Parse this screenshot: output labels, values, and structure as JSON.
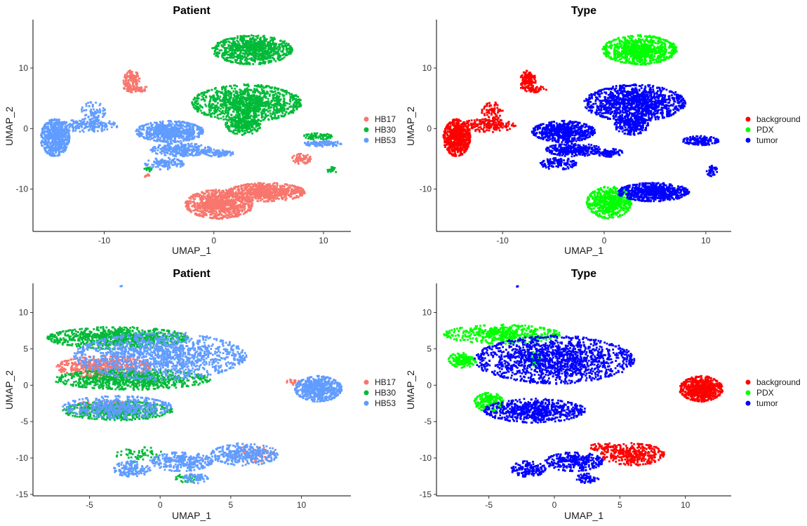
{
  "chart_data": [
    {
      "type": "scatter",
      "title": "Patient",
      "xlabel": "UMAP_1",
      "ylabel": "UMAP_2",
      "xlim": [
        -16.5,
        12.5
      ],
      "ylim": [
        -17,
        18
      ],
      "xticks": [
        -10,
        0,
        10
      ],
      "yticks": [
        -10,
        0,
        10
      ],
      "grid": false,
      "legend_position": "right",
      "series": [
        {
          "name": "HB17",
          "color": "#F8766D",
          "clusters": [
            {
              "cx": -7.5,
              "cy": 8,
              "rx": 0.7,
              "ry": 1.5,
              "n": 120
            },
            {
              "cx": -7,
              "cy": 6.5,
              "rx": 1.2,
              "ry": 0.5,
              "n": 60
            },
            {
              "cx": 0.5,
              "cy": -12.5,
              "rx": 2.8,
              "ry": 2.2,
              "n": 900
            },
            {
              "cx": 4.8,
              "cy": -10.5,
              "rx": 3.2,
              "ry": 1.4,
              "n": 700
            },
            {
              "cx": 8,
              "cy": -5,
              "rx": 0.8,
              "ry": 0.8,
              "n": 60
            },
            {
              "cx": -6,
              "cy": -7.8,
              "rx": 0.3,
              "ry": 0.3,
              "n": 10
            }
          ]
        },
        {
          "name": "HB30",
          "color": "#00BA38",
          "clusters": [
            {
              "cx": 3.5,
              "cy": 13,
              "rx": 3.3,
              "ry": 2.2,
              "n": 850
            },
            {
              "cx": 3,
              "cy": 4.2,
              "rx": 4.5,
              "ry": 2.8,
              "n": 1200
            },
            {
              "cx": 2.7,
              "cy": 0.6,
              "rx": 1.5,
              "ry": 1.5,
              "n": 250
            },
            {
              "cx": 9.5,
              "cy": -1.3,
              "rx": 1.2,
              "ry": 0.5,
              "n": 70
            },
            {
              "cx": 10.8,
              "cy": -6.8,
              "rx": 0.4,
              "ry": 0.6,
              "n": 20
            },
            {
              "cx": -6,
              "cy": -6.7,
              "rx": 0.3,
              "ry": 0.4,
              "n": 15
            }
          ]
        },
        {
          "name": "HB53",
          "color": "#619CFF",
          "clusters": [
            {
              "cx": -14.5,
              "cy": -1.5,
              "rx": 1.2,
              "ry": 2.8,
              "n": 650
            },
            {
              "cx": -11.5,
              "cy": 0.5,
              "rx": 2.5,
              "ry": 1.0,
              "n": 180
            },
            {
              "cx": -11,
              "cy": 2.8,
              "rx": 1.0,
              "ry": 1.5,
              "n": 80
            },
            {
              "cx": -4,
              "cy": -0.5,
              "rx": 2.8,
              "ry": 1.6,
              "n": 650
            },
            {
              "cx": -3,
              "cy": -3.5,
              "rx": 2.5,
              "ry": 1.0,
              "n": 300
            },
            {
              "cx": -4.5,
              "cy": -5.8,
              "rx": 1.6,
              "ry": 0.9,
              "n": 120
            },
            {
              "cx": 10,
              "cy": -2.5,
              "rx": 1.6,
              "ry": 0.45,
              "n": 100
            },
            {
              "cx": 0.5,
              "cy": -4.0,
              "rx": 1.3,
              "ry": 0.6,
              "n": 80
            }
          ]
        }
      ]
    },
    {
      "type": "scatter",
      "title": "Type",
      "xlabel": "UMAP_1",
      "ylabel": "UMAP_2",
      "xlim": [
        -16.5,
        12.5
      ],
      "ylim": [
        -17,
        18
      ],
      "xticks": [
        -10,
        0,
        10
      ],
      "yticks": [
        -10,
        0,
        10
      ],
      "grid": false,
      "legend_position": "right",
      "series": [
        {
          "name": "background",
          "color": "#FF0000",
          "clusters": [
            {
              "cx": -14.5,
              "cy": -1.5,
              "rx": 1.2,
              "ry": 2.8,
              "n": 650
            },
            {
              "cx": -11.5,
              "cy": 0.5,
              "rx": 2.5,
              "ry": 1.0,
              "n": 180
            },
            {
              "cx": -11,
              "cy": 2.8,
              "rx": 1.0,
              "ry": 1.5,
              "n": 80
            },
            {
              "cx": -7.5,
              "cy": 8,
              "rx": 0.7,
              "ry": 1.5,
              "n": 120
            },
            {
              "cx": -7,
              "cy": 6.5,
              "rx": 1.2,
              "ry": 0.5,
              "n": 60
            }
          ]
        },
        {
          "name": "PDX",
          "color": "#00FF00",
          "clusters": [
            {
              "cx": 3.5,
              "cy": 13,
              "rx": 3.3,
              "ry": 2.2,
              "n": 850
            },
            {
              "cx": 0.5,
              "cy": -12.2,
              "rx": 2.0,
              "ry": 2.4,
              "n": 600
            }
          ]
        },
        {
          "name": "tumor",
          "color": "#0000FF",
          "clusters": [
            {
              "cx": 3,
              "cy": 4.2,
              "rx": 4.5,
              "ry": 2.8,
              "n": 1200
            },
            {
              "cx": 2.7,
              "cy": 0.6,
              "rx": 1.5,
              "ry": 1.5,
              "n": 250
            },
            {
              "cx": -4,
              "cy": -0.5,
              "rx": 2.8,
              "ry": 1.6,
              "n": 650
            },
            {
              "cx": -3,
              "cy": -3.5,
              "rx": 2.5,
              "ry": 1.0,
              "n": 300
            },
            {
              "cx": -4.5,
              "cy": -5.8,
              "rx": 1.6,
              "ry": 0.9,
              "n": 120
            },
            {
              "cx": 4.8,
              "cy": -10.5,
              "rx": 3.2,
              "ry": 1.4,
              "n": 700
            },
            {
              "cx": 9.5,
              "cy": -2,
              "rx": 1.6,
              "ry": 0.7,
              "n": 150
            },
            {
              "cx": 10.6,
              "cy": -7,
              "rx": 0.5,
              "ry": 0.8,
              "n": 40
            },
            {
              "cx": 0.5,
              "cy": -4.0,
              "rx": 1.3,
              "ry": 0.6,
              "n": 80
            }
          ]
        }
      ]
    },
    {
      "type": "scatter",
      "title": "Patient",
      "xlabel": "UMAP_1",
      "ylabel": "UMAP_2",
      "xlim": [
        -9,
        13.5
      ],
      "ylim": [
        -15.2,
        14
      ],
      "xticks": [
        -5,
        0,
        5,
        10
      ],
      "yticks": [
        -15,
        -10,
        -5,
        0,
        5,
        10
      ],
      "grid": false,
      "legend_position": "right",
      "series": [
        {
          "name": "HB17",
          "color": "#F8766D",
          "clusters": [
            {
              "cx": -4,
              "cy": 2.5,
              "rx": 3.0,
              "ry": 1.4,
              "n": 600
            },
            {
              "cx": -4,
              "cy": -2.8,
              "rx": 1.8,
              "ry": 0.7,
              "n": 100
            },
            {
              "cx": 6.5,
              "cy": -9.5,
              "rx": 1.5,
              "ry": 1.0,
              "n": 60
            },
            {
              "cx": 9.5,
              "cy": 0.5,
              "rx": 0.5,
              "ry": 0.4,
              "n": 20
            }
          ]
        },
        {
          "name": "HB30",
          "color": "#00BA38",
          "clusters": [
            {
              "cx": -3,
              "cy": 6.5,
              "rx": 4.5,
              "ry": 1.4,
              "n": 900
            },
            {
              "cx": -2,
              "cy": 0.8,
              "rx": 5.0,
              "ry": 1.3,
              "n": 800
            },
            {
              "cx": -3,
              "cy": -3.5,
              "rx": 3.5,
              "ry": 1.2,
              "n": 600
            },
            {
              "cx": 1.8,
              "cy": -12.8,
              "rx": 1.0,
              "ry": 0.5,
              "n": 40
            },
            {
              "cx": -1.5,
              "cy": -9.5,
              "rx": 1.5,
              "ry": 1.0,
              "n": 60
            }
          ]
        },
        {
          "name": "HB53",
          "color": "#619CFF",
          "clusters": [
            {
              "cx": 0,
              "cy": 4,
              "rx": 5.5,
              "ry": 3.0,
              "n": 1400
            },
            {
              "cx": -3,
              "cy": -3.0,
              "rx": 3.5,
              "ry": 1.4,
              "n": 500
            },
            {
              "cx": 11.2,
              "cy": -0.5,
              "rx": 1.5,
              "ry": 1.6,
              "n": 650
            },
            {
              "cx": 6,
              "cy": -9.5,
              "rx": 2.2,
              "ry": 1.4,
              "n": 350
            },
            {
              "cx": 1.5,
              "cy": -10.5,
              "rx": 2.0,
              "ry": 1.2,
              "n": 300
            },
            {
              "cx": -2,
              "cy": -11.5,
              "rx": 1.2,
              "ry": 1.0,
              "n": 150
            },
            {
              "cx": 2.5,
              "cy": -12.8,
              "rx": 0.8,
              "ry": 0.6,
              "n": 60
            },
            {
              "cx": -2.8,
              "cy": 13.6,
              "rx": 0.1,
              "ry": 0.1,
              "n": 3
            }
          ]
        }
      ]
    },
    {
      "type": "scatter",
      "title": "Type",
      "xlabel": "UMAP_1",
      "ylabel": "UMAP_2",
      "xlim": [
        -9,
        13.5
      ],
      "ylim": [
        -15.2,
        14
      ],
      "xticks": [
        -5,
        0,
        5,
        10
      ],
      "yticks": [
        -15,
        -10,
        -5,
        0,
        5,
        10
      ],
      "grid": false,
      "legend_position": "right",
      "series": [
        {
          "name": "background",
          "color": "#FF0000",
          "clusters": [
            {
              "cx": 11.2,
              "cy": -0.5,
              "rx": 1.5,
              "ry": 1.6,
              "n": 650
            },
            {
              "cx": 6,
              "cy": -9.5,
              "rx": 2.2,
              "ry": 1.4,
              "n": 350
            },
            {
              "cx": 3.8,
              "cy": -8.5,
              "rx": 1.0,
              "ry": 0.5,
              "n": 50
            }
          ]
        },
        {
          "name": "PDX",
          "color": "#00FF00",
          "clusters": [
            {
              "cx": -4,
              "cy": 7.0,
              "rx": 4.0,
              "ry": 1.2,
              "n": 500
            },
            {
              "cx": -7,
              "cy": 3.5,
              "rx": 1.0,
              "ry": 1.0,
              "n": 150
            },
            {
              "cx": -1.5,
              "cy": 3.5,
              "rx": 0.5,
              "ry": 1.0,
              "n": 80
            },
            {
              "cx": -5,
              "cy": -2.3,
              "rx": 1.0,
              "ry": 1.2,
              "n": 200
            }
          ]
        },
        {
          "name": "tumor",
          "color": "#0000FF",
          "clusters": [
            {
              "cx": 0,
              "cy": 3.5,
              "rx": 5.5,
              "ry": 3.0,
              "n": 1500
            },
            {
              "cx": -1.5,
              "cy": -3.5,
              "rx": 3.5,
              "ry": 1.5,
              "n": 700
            },
            {
              "cx": 1.5,
              "cy": -10.5,
              "rx": 2.0,
              "ry": 1.2,
              "n": 300
            },
            {
              "cx": -2,
              "cy": -11.5,
              "rx": 1.2,
              "ry": 1.0,
              "n": 150
            },
            {
              "cx": 2.5,
              "cy": -12.8,
              "rx": 0.8,
              "ry": 0.6,
              "n": 60
            },
            {
              "cx": -2.8,
              "cy": 13.6,
              "rx": 0.1,
              "ry": 0.1,
              "n": 3
            }
          ]
        }
      ]
    }
  ]
}
